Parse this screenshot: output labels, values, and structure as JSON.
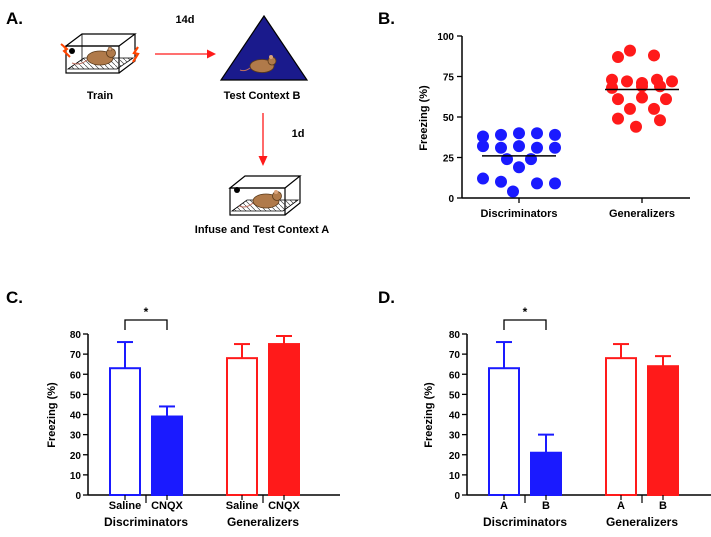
{
  "panels": {
    "a": {
      "label": "A.",
      "train_label": "Train",
      "arrow1_label": "14d",
      "testb_label": "Test Context B",
      "arrow2_label": "1d",
      "final_label": "Infuse and Test Context A"
    },
    "b": {
      "label": "B."
    },
    "c": {
      "label": "C."
    },
    "d": {
      "label": "D."
    }
  },
  "colors": {
    "blue": "#1a1aff",
    "red": "#ff1a1a",
    "triangle": "#1a1a8c",
    "mouse": "#b07a4a"
  },
  "chart_data": [
    {
      "id": "b",
      "type": "scatter",
      "ylabel": "Freezing (%)",
      "ylim": [
        0,
        100
      ],
      "yticks": [
        "0",
        "25",
        "50",
        "75",
        "100"
      ],
      "categories": [
        "Discriminators",
        "Generalizers"
      ],
      "series": [
        {
          "name": "Discriminators",
          "color": "#1a1aff",
          "mean": 26,
          "points": [
            {
              "dx": -3,
              "y": 38
            },
            {
              "dx": -1.5,
              "y": 39
            },
            {
              "dx": 0,
              "y": 40
            },
            {
              "dx": 1.5,
              "y": 40
            },
            {
              "dx": 3,
              "y": 39
            },
            {
              "dx": -3,
              "y": 32
            },
            {
              "dx": -1.5,
              "y": 31
            },
            {
              "dx": 0,
              "y": 32
            },
            {
              "dx": 1.5,
              "y": 31
            },
            {
              "dx": 3,
              "y": 31
            },
            {
              "dx": -1,
              "y": 24
            },
            {
              "dx": 1,
              "y": 24
            },
            {
              "dx": 0,
              "y": 19
            },
            {
              "dx": -3,
              "y": 12
            },
            {
              "dx": -1.5,
              "y": 10
            },
            {
              "dx": 1.5,
              "y": 9
            },
            {
              "dx": 3,
              "y": 9
            },
            {
              "dx": -0.5,
              "y": 4
            }
          ]
        },
        {
          "name": "Generalizers",
          "color": "#ff1a1a",
          "mean": 67,
          "points": [
            {
              "dx": -1,
              "y": 91
            },
            {
              "dx": 1,
              "y": 88
            },
            {
              "dx": -2,
              "y": 87
            },
            {
              "dx": -2.5,
              "y": 73
            },
            {
              "dx": -1.25,
              "y": 72
            },
            {
              "dx": 0,
              "y": 71
            },
            {
              "dx": 1.25,
              "y": 73
            },
            {
              "dx": 2.5,
              "y": 72
            },
            {
              "dx": -2.5,
              "y": 68
            },
            {
              "dx": 0,
              "y": 69
            },
            {
              "dx": 1.5,
              "y": 69
            },
            {
              "dx": -2,
              "y": 61
            },
            {
              "dx": 0,
              "y": 62
            },
            {
              "dx": 2,
              "y": 61
            },
            {
              "dx": -1,
              "y": 55
            },
            {
              "dx": 1,
              "y": 55
            },
            {
              "dx": -2,
              "y": 49
            },
            {
              "dx": 1.5,
              "y": 48
            },
            {
              "dx": -0.5,
              "y": 44
            }
          ]
        }
      ]
    },
    {
      "id": "c",
      "type": "bar",
      "ylabel": "Freezing (%)",
      "ylim": [
        0,
        80
      ],
      "yticks": [
        "0",
        "10",
        "20",
        "30",
        "40",
        "50",
        "60",
        "70",
        "80"
      ],
      "categories": [
        "Saline",
        "CNQX",
        "Saline",
        "CNQX"
      ],
      "groups": [
        "Discriminators",
        "Generalizers"
      ],
      "values": [
        63,
        39,
        68,
        75
      ],
      "errors": [
        13,
        5,
        7,
        4
      ],
      "colors": [
        "#1a1aff",
        "#1a1aff",
        "#ff1a1a",
        "#ff1a1a"
      ],
      "filled": [
        false,
        true,
        false,
        true
      ],
      "significance": "*"
    },
    {
      "id": "d",
      "type": "bar",
      "ylabel": "Freezing (%)",
      "ylim": [
        0,
        80
      ],
      "yticks": [
        "0",
        "10",
        "20",
        "30",
        "40",
        "50",
        "60",
        "70",
        "80"
      ],
      "categories": [
        "A",
        "B",
        "A",
        "B"
      ],
      "groups": [
        "Discriminators",
        "Generalizers"
      ],
      "values": [
        63,
        21,
        68,
        64
      ],
      "errors": [
        13,
        9,
        7,
        5
      ],
      "colors": [
        "#1a1aff",
        "#1a1aff",
        "#ff1a1a",
        "#ff1a1a"
      ],
      "filled": [
        false,
        true,
        false,
        true
      ],
      "significance": "*"
    }
  ]
}
